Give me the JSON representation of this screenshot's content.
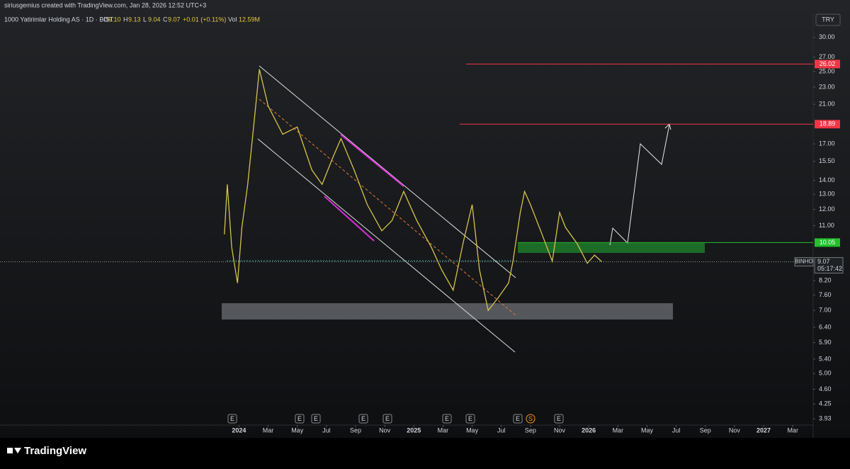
{
  "header": {
    "credit": "siriusgemius created with TradingView.com, Jan 28, 2026 12:52 UTC+3",
    "symbol": "1000 Yatirimlar Holding AS · 1D · BIST",
    "ohlc": [
      {
        "key": "O",
        "value": "9.10"
      },
      {
        "key": "H",
        "value": "9.13"
      },
      {
        "key": "L",
        "value": "9.04"
      },
      {
        "key": "C",
        "value": "9.07"
      }
    ],
    "change": "+0.01 (+0.11%)",
    "volume_key": "Vol",
    "volume": "12.59M",
    "currency": "TRY"
  },
  "footer": {
    "brand": "TradingView"
  },
  "events": [
    "E",
    "E",
    "E",
    "E",
    "E",
    "E",
    "E",
    "E",
    "S",
    "E"
  ],
  "chart_data": {
    "type": "line",
    "log_scale": true,
    "series": [
      {
        "name": "BINHO",
        "color": "#d6c34a",
        "x": [
          -1.0,
          -0.8,
          -0.5,
          -0.1,
          0.2,
          0.6,
          1.0,
          1.4,
          2.0,
          3.0,
          4.0,
          5.0,
          5.7,
          6.4,
          7.0,
          7.9,
          8.8,
          9.8,
          10.5,
          11.3,
          12.2,
          13.2,
          13.9,
          14.7,
          15.4,
          16.0,
          16.5,
          17.1,
          17.8,
          18.5,
          18.8,
          19.3,
          19.6,
          20.0,
          20.7,
          21.5,
          22.0,
          22.4,
          23.2,
          23.9,
          24.4,
          24.9
        ],
        "values": [
          10.5,
          13.7,
          9.8,
          8.1,
          10.9,
          13.7,
          18.6,
          25.3,
          20.8,
          17.9,
          18.6,
          14.8,
          13.7,
          15.7,
          17.5,
          14.8,
          12.3,
          10.7,
          11.3,
          13.2,
          11.3,
          9.8,
          8.7,
          7.8,
          10.1,
          12.3,
          8.7,
          7.0,
          7.5,
          8.1,
          9.1,
          11.8,
          13.2,
          12.3,
          10.7,
          9.1,
          11.8,
          10.9,
          10.0,
          9.0,
          9.4,
          9.07
        ]
      }
    ],
    "last": {
      "value": 9.07,
      "label": "9.07",
      "ticker": "BINHO",
      "countdown": "05:17:42"
    },
    "levels": [
      {
        "value": 26.02,
        "label": "26.02",
        "color": "#f23645"
      },
      {
        "value": 18.89,
        "label": "18.89",
        "color": "#f23645"
      },
      {
        "value": 10.05,
        "label": "10.05",
        "color": "#22c12a"
      }
    ],
    "xlim": [
      -16.4,
      39.4
    ],
    "xticks": [
      {
        "value": 0,
        "label": "2024"
      },
      {
        "value": 2,
        "label": "Mar"
      },
      {
        "value": 4,
        "label": "May"
      },
      {
        "value": 6,
        "label": "Jul"
      },
      {
        "value": 8,
        "label": "Sep"
      },
      {
        "value": 10,
        "label": "Nov"
      },
      {
        "value": 12,
        "label": "2025"
      },
      {
        "value": 14,
        "label": "Mar"
      },
      {
        "value": 16,
        "label": "May"
      },
      {
        "value": 18,
        "label": "Jul"
      },
      {
        "value": 20,
        "label": "Sep"
      },
      {
        "value": 22,
        "label": "Nov"
      },
      {
        "value": 24,
        "label": "2026"
      },
      {
        "value": 26,
        "label": "Mar"
      },
      {
        "value": 28,
        "label": "May"
      },
      {
        "value": 30,
        "label": "Jul"
      },
      {
        "value": 32,
        "label": "Sep"
      },
      {
        "value": 34,
        "label": "Nov"
      },
      {
        "value": 36,
        "label": "2027"
      },
      {
        "value": 38,
        "label": "Mar"
      }
    ],
    "ylim": [
      3.8,
      34.2
    ],
    "yticks": [
      {
        "value": 30,
        "label": "30.00"
      },
      {
        "value": 27,
        "label": "27.00"
      },
      {
        "value": 25,
        "label": "25.00"
      },
      {
        "value": 23,
        "label": "23.00"
      },
      {
        "value": 21,
        "label": "21.00"
      },
      {
        "value": 17,
        "label": "17.00"
      },
      {
        "value": 15.5,
        "label": "15.50"
      },
      {
        "value": 14,
        "label": "14.00"
      },
      {
        "value": 13,
        "label": "13.00"
      },
      {
        "value": 12,
        "label": "12.00"
      },
      {
        "value": 11,
        "label": "11.00"
      },
      {
        "value": 8.2,
        "label": "8.20"
      },
      {
        "value": 7.6,
        "label": "7.60"
      },
      {
        "value": 7,
        "label": "7.00"
      },
      {
        "value": 6.4,
        "label": "6.40"
      },
      {
        "value": 5.9,
        "label": "5.90"
      },
      {
        "value": 5.4,
        "label": "5.40"
      },
      {
        "value": 5,
        "label": "5.00"
      },
      {
        "value": 4.6,
        "label": "4.60"
      },
      {
        "value": 4.25,
        "label": "4.25"
      },
      {
        "value": 3.93,
        "label": "3.93"
      }
    ]
  }
}
